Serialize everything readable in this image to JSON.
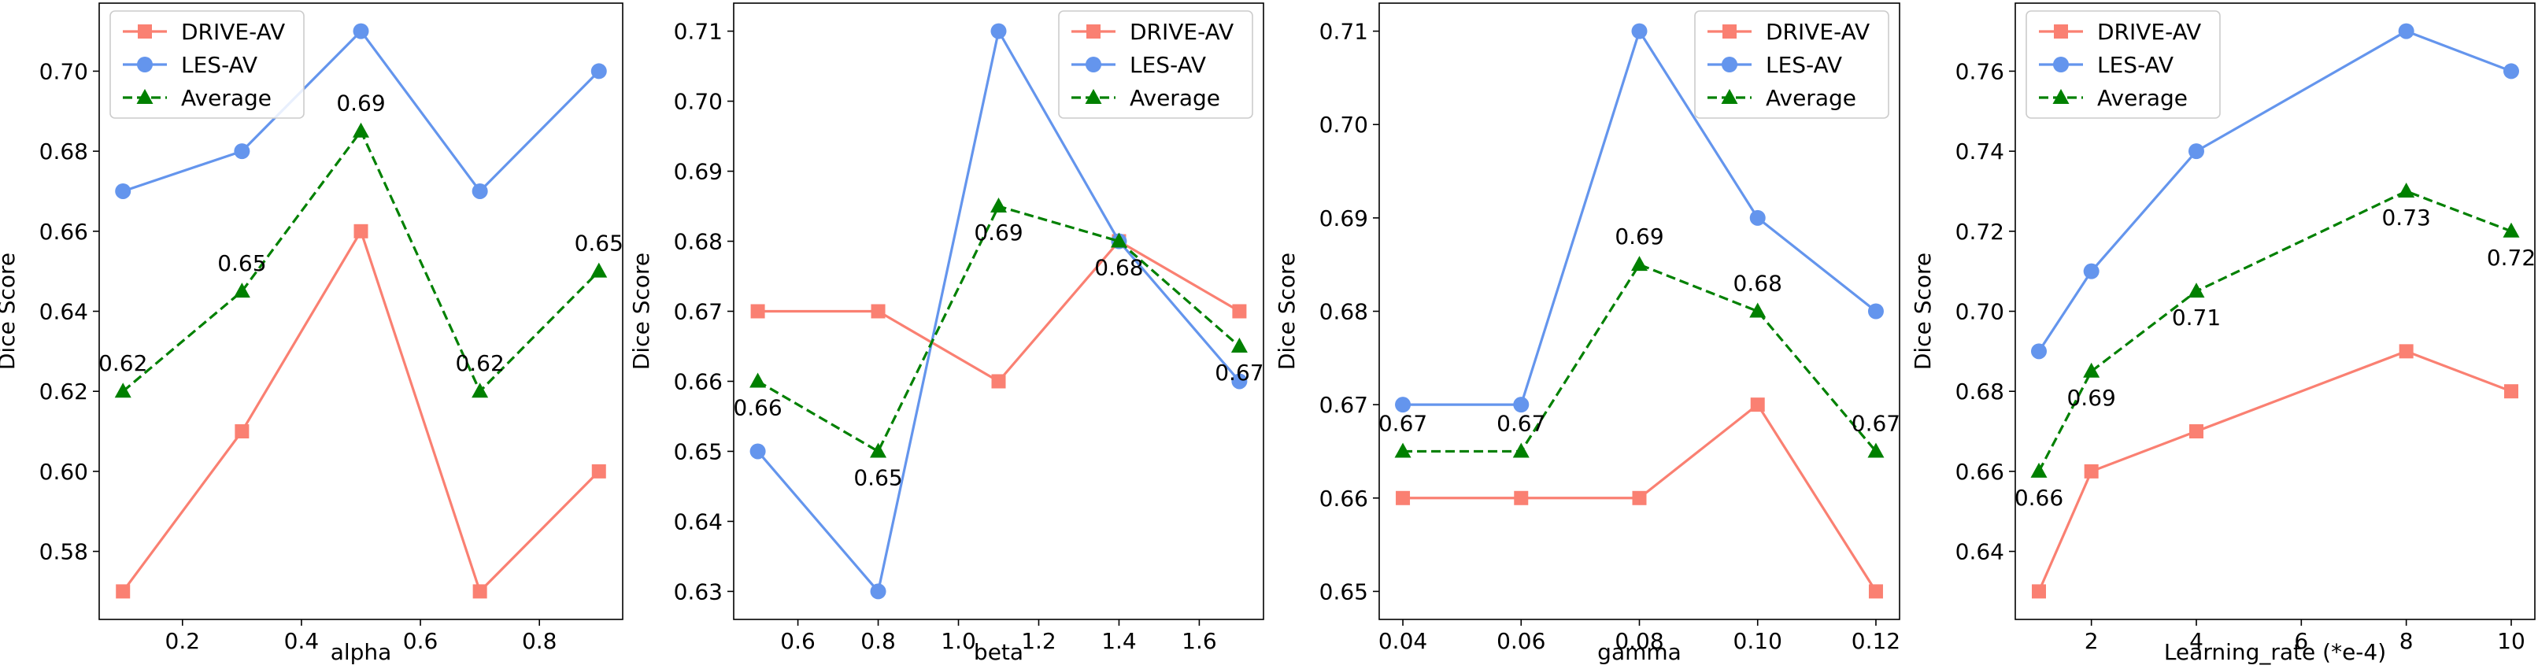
{
  "colors": {
    "drive": "#fa8072",
    "les": "#6495ed",
    "average": "#008000"
  },
  "legend": {
    "drive": "DRIVE-AV",
    "les": "LES-AV",
    "average": "Average"
  },
  "chart_data": [
    {
      "type": "line",
      "xlabel": "alpha",
      "ylabel": "Dice Score",
      "legend_position": "top-left",
      "xlim": [
        0.06,
        0.94
      ],
      "ylim": [
        0.563,
        0.717
      ],
      "xticks": [
        0.2,
        0.4,
        0.6,
        0.8
      ],
      "xtick_labels": [
        "0.2",
        "0.4",
        "0.6",
        "0.8"
      ],
      "yticks": [
        0.58,
        0.6,
        0.62,
        0.64,
        0.66,
        0.68,
        0.7
      ],
      "ytick_labels": [
        "0.58",
        "0.60",
        "0.62",
        "0.64",
        "0.66",
        "0.68",
        "0.70"
      ],
      "x": [
        0.1,
        0.3,
        0.5,
        0.7,
        0.9
      ],
      "series": [
        {
          "name": "DRIVE-AV",
          "values": [
            0.57,
            0.61,
            0.66,
            0.57,
            0.6
          ]
        },
        {
          "name": "LES-AV",
          "values": [
            0.67,
            0.68,
            0.71,
            0.67,
            0.7
          ]
        },
        {
          "name": "Average",
          "values": [
            0.62,
            0.645,
            0.685,
            0.62,
            0.65
          ]
        }
      ],
      "annotations": [
        "0.62",
        "0.65",
        "0.69",
        "0.62",
        "0.65"
      ],
      "annotation_side": [
        "above",
        "above",
        "above",
        "above",
        "above"
      ]
    },
    {
      "type": "line",
      "xlabel": "beta",
      "ylabel": "Dice Score",
      "legend_position": "top-right",
      "xlim": [
        0.44,
        1.76
      ],
      "ylim": [
        0.626,
        0.714
      ],
      "xticks": [
        0.6,
        0.8,
        1.0,
        1.2,
        1.4,
        1.6
      ],
      "xtick_labels": [
        "0.6",
        "0.8",
        "1.0",
        "1.2",
        "1.4",
        "1.6"
      ],
      "yticks": [
        0.63,
        0.64,
        0.65,
        0.66,
        0.67,
        0.68,
        0.69,
        0.7,
        0.71
      ],
      "ytick_labels": [
        "0.63",
        "0.64",
        "0.65",
        "0.66",
        "0.67",
        "0.68",
        "0.69",
        "0.70",
        "0.71"
      ],
      "x": [
        0.5,
        0.8,
        1.1,
        1.4,
        1.7
      ],
      "series": [
        {
          "name": "DRIVE-AV",
          "values": [
            0.67,
            0.67,
            0.66,
            0.68,
            0.67
          ]
        },
        {
          "name": "LES-AV",
          "values": [
            0.65,
            0.63,
            0.71,
            0.68,
            0.66
          ]
        },
        {
          "name": "Average",
          "values": [
            0.66,
            0.65,
            0.685,
            0.68,
            0.665
          ]
        }
      ],
      "annotations": [
        "0.66",
        "0.65",
        "0.69",
        "0.68",
        "0.67"
      ],
      "annotation_side": [
        "below",
        "below",
        "below",
        "below",
        "below"
      ]
    },
    {
      "type": "line",
      "xlabel": "gamma",
      "ylabel": "Dice Score",
      "legend_position": "top-right",
      "xlim": [
        0.036,
        0.124
      ],
      "ylim": [
        0.647,
        0.713
      ],
      "xticks": [
        0.04,
        0.06,
        0.08,
        0.1,
        0.12
      ],
      "xtick_labels": [
        "0.04",
        "0.06",
        "0.08",
        "0.10",
        "0.12"
      ],
      "yticks": [
        0.65,
        0.66,
        0.67,
        0.68,
        0.69,
        0.7,
        0.71
      ],
      "ytick_labels": [
        "0.65",
        "0.66",
        "0.67",
        "0.68",
        "0.69",
        "0.70",
        "0.71"
      ],
      "x": [
        0.04,
        0.06,
        0.08,
        0.1,
        0.12
      ],
      "series": [
        {
          "name": "DRIVE-AV",
          "values": [
            0.66,
            0.66,
            0.66,
            0.67,
            0.65
          ]
        },
        {
          "name": "LES-AV",
          "values": [
            0.67,
            0.67,
            0.71,
            0.69,
            0.68
          ]
        },
        {
          "name": "Average",
          "values": [
            0.665,
            0.665,
            0.685,
            0.68,
            0.665
          ]
        }
      ],
      "annotations": [
        "0.67",
        "0.67",
        "0.69",
        "0.68",
        "0.67"
      ],
      "annotation_side": [
        "above",
        "above",
        "above",
        "above",
        "above"
      ]
    },
    {
      "type": "line",
      "xlabel": "Learning_rate (*e-4)",
      "ylabel": "Dice Score",
      "legend_position": "top-left",
      "xlim": [
        0.55,
        10.45
      ],
      "ylim": [
        0.623,
        0.777
      ],
      "xticks": [
        2,
        4,
        6,
        8,
        10
      ],
      "xtick_labels": [
        "2",
        "4",
        "6",
        "8",
        "10"
      ],
      "yticks": [
        0.64,
        0.66,
        0.68,
        0.7,
        0.72,
        0.74,
        0.76
      ],
      "ytick_labels": [
        "0.64",
        "0.66",
        "0.68",
        "0.70",
        "0.72",
        "0.74",
        "0.76"
      ],
      "x": [
        1,
        2,
        4,
        8,
        10
      ],
      "series": [
        {
          "name": "DRIVE-AV",
          "values": [
            0.63,
            0.66,
            0.67,
            0.69,
            0.68
          ]
        },
        {
          "name": "LES-AV",
          "values": [
            0.69,
            0.71,
            0.74,
            0.77,
            0.76
          ]
        },
        {
          "name": "Average",
          "values": [
            0.66,
            0.685,
            0.705,
            0.73,
            0.72
          ]
        }
      ],
      "annotations": [
        "0.66",
        "0.69",
        "0.71",
        "0.73",
        "0.72"
      ],
      "annotation_side": [
        "below",
        "below",
        "below",
        "below",
        "below"
      ]
    }
  ]
}
